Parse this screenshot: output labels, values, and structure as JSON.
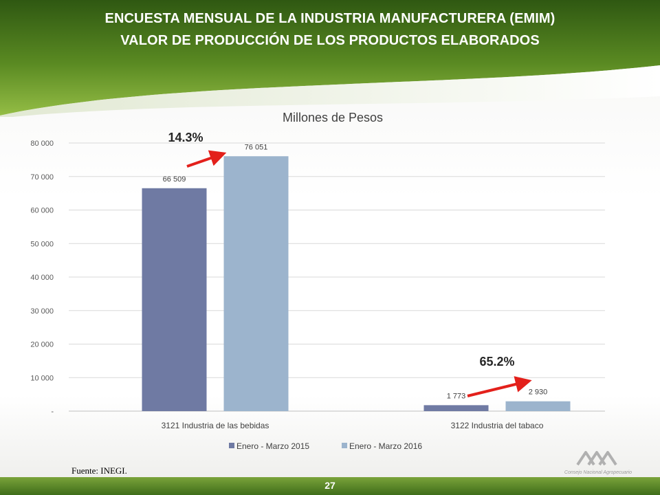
{
  "header": {
    "title_line1": "ENCUESTA MENSUAL DE LA INDUSTRIA MANUFACTURERA (EMIM)",
    "title_line2": "VALOR DE PRODUCCIÓN DE LOS PRODUCTOS ELABORADOS"
  },
  "colors": {
    "banner_dark": "#3d6b17",
    "banner_light": "#8ab43a",
    "series_2015": "#6f7aa3",
    "series_2016": "#9cb4cd",
    "arrow": "#e3201b"
  },
  "chart_data": {
    "type": "bar",
    "title": "Millones de Pesos",
    "categories": [
      "3121 Industria de las bebidas",
      "3122 Industria del tabaco"
    ],
    "series": [
      {
        "name": "Enero - Marzo 2015",
        "values": [
          66509,
          1773
        ],
        "labels": [
          "66 509",
          "1 773"
        ]
      },
      {
        "name": "Enero - Marzo 2016",
        "values": [
          76051,
          2930
        ],
        "labels": [
          "76 051",
          "2 930"
        ]
      }
    ],
    "ylim": [
      0,
      80000
    ],
    "yticks": [
      0,
      10000,
      20000,
      30000,
      40000,
      50000,
      60000,
      70000,
      80000
    ],
    "ytick_labels": [
      "-",
      "10 000",
      "20 000",
      "30 000",
      "40 000",
      "50 000",
      "60 000",
      "70 000",
      "80 000"
    ],
    "grid": true,
    "legend_position": "bottom",
    "annotations": [
      "14.3%",
      "65.2%"
    ]
  },
  "footer": {
    "source": "Fuente: INEGI.",
    "page_number": "27",
    "logo_text": "Consejo Nacional Agropecuario"
  }
}
